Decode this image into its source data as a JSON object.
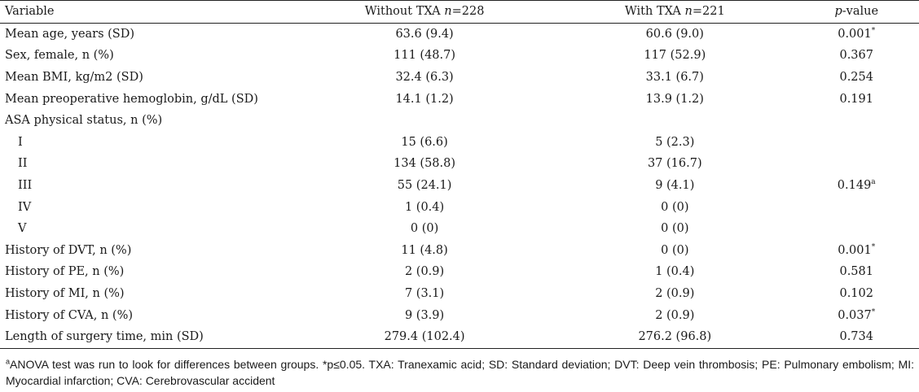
{
  "table": {
    "headers": {
      "variable": "Variable",
      "without_prefix": "Without TXA ",
      "without_n_label": "n",
      "without_n_value": "=228",
      "with_prefix": "With TXA ",
      "with_n_label": "n",
      "with_n_value": "=221",
      "p_label": "p",
      "p_suffix": "-value"
    },
    "rows": [
      {
        "variable": "Mean age, years (SD)",
        "without": "63.6 (9.4)",
        "with": "60.6 (9.0)",
        "p": "0.001",
        "p_mark": "*"
      },
      {
        "variable": "Sex, female, n (%)",
        "without": "111 (48.7)",
        "with": "117 (52.9)",
        "p": "0.367",
        "p_mark": ""
      },
      {
        "variable": "Mean BMI, kg/m2 (SD)",
        "without": "32.4 (6.3)",
        "with": "33.1 (6.7)",
        "p": "0.254",
        "p_mark": ""
      },
      {
        "variable": "Mean preoperative hemoglobin, g/dL (SD)",
        "without": "14.1 (1.2)",
        "with": "13.9 (1.2)",
        "p": "0.191",
        "p_mark": ""
      },
      {
        "variable": "ASA physical status, n (%)",
        "without": "",
        "with": "",
        "p": "",
        "p_mark": ""
      },
      {
        "variable": "I",
        "without": "15 (6.6)",
        "with": "5 (2.3)",
        "p": "",
        "p_mark": ""
      },
      {
        "variable": "II",
        "without": "134 (58.8)",
        "with": "37 (16.7)",
        "p": "",
        "p_mark": ""
      },
      {
        "variable": "III",
        "without": "55 (24.1)",
        "with": "9 (4.1)",
        "p": "0.149",
        "p_mark": "a"
      },
      {
        "variable": "IV",
        "without": "1 (0.4)",
        "with": "0 (0)",
        "p": "",
        "p_mark": ""
      },
      {
        "variable": "V",
        "without": "0 (0)",
        "with": "0 (0)",
        "p": "",
        "p_mark": ""
      },
      {
        "variable": "History of DVT, n (%)",
        "without": "11 (4.8)",
        "with": "0 (0)",
        "p": "0.001",
        "p_mark": "*"
      },
      {
        "variable": "History of PE, n (%)",
        "without": "2 (0.9)",
        "with": "1 (0.4)",
        "p": "0.581",
        "p_mark": ""
      },
      {
        "variable": "History of MI, n (%)",
        "without": "7 (3.1)",
        "with": "2 (0.9)",
        "p": "0.102",
        "p_mark": ""
      },
      {
        "variable": "History of CVA, n (%)",
        "without": "9 (3.9)",
        "with": "2 (0.9)",
        "p": "0.037",
        "p_mark": "*"
      },
      {
        "variable": "Length of surgery time, min (SD)",
        "without": "279.4 (102.4)",
        "with": "276.2 (96.8)",
        "p": "0.734",
        "p_mark": ""
      }
    ]
  },
  "footnote": {
    "mark": "a",
    "text": "ANOVA test was run to look for differences between groups. *p≤0.05. TXA: Tranexamic acid; SD: Standard deviation; DVT: Deep vein thrombosis; PE: Pulmonary embolism; MI: Myocardial infarction; CVA: Cerebrovascular accident"
  }
}
